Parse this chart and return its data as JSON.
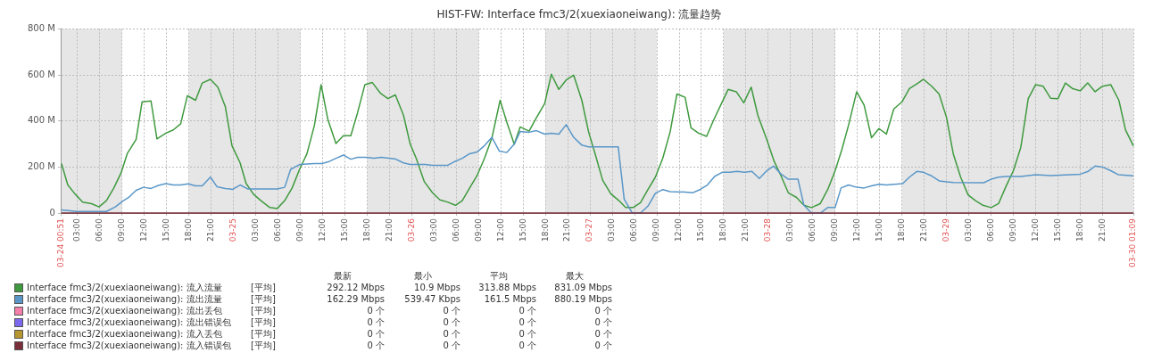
{
  "chart_data": {
    "type": "line",
    "title": "HIST-FW: Interface fmc3/2(xuexiaoneiwang): 流量趋势",
    "xlim": [
      "--03-24T00:51",
      "--03-30T01:09"
    ],
    "xticks": [
      {
        "value": "--03-24T00:51",
        "label": "03-24 00:51"
      },
      {
        "value": "--03-24T03:00",
        "label": "03:00"
      },
      {
        "value": "--03-24T06:00",
        "label": "06:00"
      },
      {
        "value": "--03-24T09:00",
        "label": "09:00"
      },
      {
        "value": "--03-24T12:00",
        "label": "12:00"
      },
      {
        "value": "--03-24T15:00",
        "label": "15:00"
      },
      {
        "value": "--03-24T18:00",
        "label": "18:00"
      },
      {
        "value": "--03-24T21:00",
        "label": "21:00"
      },
      {
        "value": "--03-25",
        "label": "03-25"
      },
      {
        "value": "--03-25T03:00",
        "label": "03:00"
      },
      {
        "value": "--03-25T06:00",
        "label": "06:00"
      },
      {
        "value": "--03-25T09:00",
        "label": "09:00"
      },
      {
        "value": "--03-25T12:00",
        "label": "12:00"
      },
      {
        "value": "--03-25T15:00",
        "label": "15:00"
      },
      {
        "value": "--03-25T18:00",
        "label": "18:00"
      },
      {
        "value": "--03-25T21:00",
        "label": "21:00"
      },
      {
        "value": "--03-26",
        "label": "03-26"
      },
      {
        "value": "--03-26T03:00",
        "label": "03:00"
      },
      {
        "value": "--03-26T06:00",
        "label": "06:00"
      },
      {
        "value": "--03-26T09:00",
        "label": "09:00"
      },
      {
        "value": "--03-26T12:00",
        "label": "12:00"
      },
      {
        "value": "--03-26T15:00",
        "label": "15:00"
      },
      {
        "value": "--03-26T18:00",
        "label": "18:00"
      },
      {
        "value": "--03-26T21:00",
        "label": "21:00"
      },
      {
        "value": "--03-27",
        "label": "03-27"
      },
      {
        "value": "--03-27T03:00",
        "label": "03:00"
      },
      {
        "value": "--03-27T06:00",
        "label": "06:00"
      },
      {
        "value": "--03-27T09:00",
        "label": "09:00"
      },
      {
        "value": "--03-27T12:00",
        "label": "12:00"
      },
      {
        "value": "--03-27T15:00",
        "label": "15:00"
      },
      {
        "value": "--03-27T18:00",
        "label": "18:00"
      },
      {
        "value": "--03-27T21:00",
        "label": "21:00"
      },
      {
        "value": "--03-28",
        "label": "03-28"
      },
      {
        "value": "--03-28T03:00",
        "label": "03:00"
      },
      {
        "value": "--03-28T06:00",
        "label": "06:00"
      },
      {
        "value": "--03-28T09:00",
        "label": "09:00"
      },
      {
        "value": "--03-28T12:00",
        "label": "12:00"
      },
      {
        "value": "--03-28T15:00",
        "label": "15:00"
      },
      {
        "value": "--03-28T18:00",
        "label": "18:00"
      },
      {
        "value": "--03-28T21:00",
        "label": "21:00"
      },
      {
        "value": "--03-29",
        "label": "03-29"
      },
      {
        "value": "--03-29T03:00",
        "label": "03:00"
      },
      {
        "value": "--03-29T06:00",
        "label": "06:00"
      },
      {
        "value": "--03-29T09:00",
        "label": "09:00"
      },
      {
        "value": "--03-29T12:00",
        "label": "12:00"
      },
      {
        "value": "--03-29T15:00",
        "label": "15:00"
      },
      {
        "value": "--03-29T18:00",
        "label": "18:00"
      },
      {
        "value": "--03-29T21:00",
        "label": "21:00"
      },
      {
        "value": "--03-30T01:09",
        "label": "03-30 01:09"
      }
    ],
    "ylim": [
      0,
      800
    ],
    "yticks": [
      0,
      {
        "value": 200,
        "label": "200 M"
      },
      {
        "value": 400,
        "label": "400 M"
      },
      {
        "value": 600,
        "label": "600 M"
      },
      {
        "value": 800,
        "label": "800 M"
      }
    ],
    "grid": true,
    "legend": "bottom",
    "bands": [
      {
        "axis": "x",
        "from": "--03-24T00:51",
        "to": "--03-24T09:00",
        "color": "#e6e6e6"
      },
      {
        "axis": "x",
        "from": "--03-24T18:00",
        "to": "--03-25T09:00",
        "color": "#e6e6e6"
      },
      {
        "axis": "x",
        "from": "--03-25T18:00",
        "to": "--03-26T09:00",
        "color": "#e6e6e6"
      },
      {
        "axis": "x",
        "from": "--03-26T18:00",
        "to": "--03-27T09:00",
        "color": "#e6e6e6"
      },
      {
        "axis": "x",
        "from": "--03-27T18:00",
        "to": "--03-28T09:00",
        "color": "#e6e6e6"
      },
      {
        "axis": "x",
        "from": "--03-28T18:00",
        "to": "--03-30T01:09",
        "color": "#e6e6e6"
      }
    ],
    "series": [
      {
        "name": "Interface fmc3/2(xuexiaoneiwang): 流入流量",
        "color": "#3f9a3f",
        "x": [
          "--03-24T00:51",
          "--03-24T01:42",
          "--03-24T02:42",
          "--03-24T03:42",
          "--03-24T04:54",
          "--03-24T05:54",
          "--03-24T06:54",
          "--03-24T07:54",
          "--03-24T08:54",
          "--03-24T09:42",
          "--03-24T10:54",
          "--03-24T11:42",
          "--03-24T12:54",
          "--03-24T13:42",
          "--03-24T14:54",
          "--03-24T15:54",
          "--03-24T16:54",
          "--03-24T17:48",
          "--03-24T18:54",
          "--03-24T19:48",
          "--03-24T20:54",
          "--03-24T21:54",
          "--03-24T22:54",
          "--03-24T23:48",
          "--03-25T00:54",
          "--03-25T01:42",
          "--03-25T02:42",
          "--03-25T03:42",
          "--03-25T04:54",
          "--03-25T05:54",
          "--03-25T06:54",
          "--03-25T07:54",
          "--03-25T08:54",
          "--03-25T09:54",
          "--03-25T10:54",
          "--03-25T11:48",
          "--03-25T12:42",
          "--03-25T13:48",
          "--03-25T14:48",
          "--03-25T15:48",
          "--03-25T16:42",
          "--03-25T17:42",
          "--03-25T18:42",
          "--03-25T19:48",
          "--03-25T20:48",
          "--03-25T21:48",
          "--03-25T22:54",
          "--03-25T23:48",
          "--03-26T00:36",
          "--03-26T01:42",
          "--03-26T02:48",
          "--03-26T03:48",
          "--03-26T04:48",
          "--03-26T05:54",
          "--03-26T06:48",
          "--03-26T07:48",
          "--03-26T08:48",
          "--03-26T09:48",
          "--03-26T10:48",
          "--03-26T11:54",
          "--03-26T12:48",
          "--03-26T13:48",
          "--03-26T14:36",
          "--03-26T15:48",
          "--03-26T16:48",
          "--03-26T17:54",
          "--03-26T18:48",
          "--03-26T19:48",
          "--03-26T20:48",
          "--03-26T21:48",
          "--03-26T22:54",
          "--03-26T23:48",
          "--03-27T00:48",
          "--03-27T01:42",
          "--03-27T02:48",
          "--03-27T03:54",
          "--03-27T04:48",
          "--03-27T05:48",
          "--03-27T06:48",
          "--03-27T07:48",
          "--03-27T08:48",
          "--03-27T09:48",
          "--03-27T10:48",
          "--03-27T11:42",
          "--03-27T12:48",
          "--03-27T13:36",
          "--03-27T14:36",
          "--03-27T15:42",
          "--03-27T16:36",
          "--03-27T17:36",
          "--03-27T18:36",
          "--03-27T19:42",
          "--03-27T20:42",
          "--03-27T21:42",
          "--03-27T22:36",
          "--03-27T23:48",
          "--03-28T00:48",
          "--03-28T01:42",
          "--03-28T02:42",
          "--03-28T03:48",
          "--03-28T04:48",
          "--03-28T05:48",
          "--03-28T07:00",
          "--03-28T08:00",
          "--03-28T09:00",
          "--03-28T09:54",
          "--03-28T10:48",
          "--03-28T11:54",
          "--03-28T12:54",
          "--03-28T13:54",
          "--03-28T14:54",
          "--03-28T15:54",
          "--03-28T16:54",
          "--03-28T18:00",
          "--03-28T19:00",
          "--03-28T20:00",
          "--03-28T20:54",
          "--03-28T22:00",
          "--03-28T23:00",
          "--03-29T00:00",
          "--03-29T00:54",
          "--03-29T01:54",
          "--03-29T02:54",
          "--03-29T03:54",
          "--03-29T04:54",
          "--03-29T06:00",
          "--03-29T07:00",
          "--03-29T08:00",
          "--03-29T09:00",
          "--03-29T10:00",
          "--03-29T11:00",
          "--03-29T12:00",
          "--03-29T13:00",
          "--03-29T14:00",
          "--03-29T15:00",
          "--03-29T16:00",
          "--03-29T17:00",
          "--03-29T18:00",
          "--03-29T19:00",
          "--03-29T20:00",
          "--03-29T21:00",
          "--03-29T22:06",
          "--03-29T23:12",
          "--03-30T00:06",
          "--03-30T01:09"
        ],
        "values": [
          215,
          122,
          82,
          48,
          41,
          27,
          54,
          109,
          177,
          258,
          320,
          483,
          487,
          322,
          347,
          361,
          388,
          510,
          490,
          565,
          581,
          547,
          463,
          293,
          218,
          129,
          82,
          54,
          24,
          20,
          54,
          109,
          190,
          258,
          381,
          558,
          408,
          302,
          336,
          336,
          435,
          558,
          567,
          520,
          497,
          513,
          424,
          299,
          238,
          136,
          88,
          57,
          48,
          34,
          54,
          109,
          163,
          238,
          327,
          490,
          395,
          299,
          374,
          356,
          415,
          476,
          603,
          537,
          578,
          599,
          490,
          354,
          245,
          143,
          84,
          54,
          24,
          24,
          45,
          102,
          156,
          238,
          354,
          517,
          503,
          370,
          347,
          333,
          401,
          469,
          537,
          527,
          479,
          547,
          424,
          320,
          224,
          163,
          88,
          68,
          34,
          24,
          41,
          102,
          184,
          275,
          381,
          527,
          469,
          327,
          367,
          343,
          452,
          483,
          541,
          561,
          581,
          551,
          517,
          415,
          258,
          156,
          79,
          54,
          34,
          24,
          41,
          116,
          184,
          286,
          497,
          558,
          551,
          499,
          497,
          565,
          540,
          531,
          565,
          527,
          551,
          558,
          490,
          361,
          292
        ]
      },
      {
        "name": "Interface fmc3/2(xuexiaoneiwang): 流出流量",
        "color": "#5a97c8",
        "x": [
          "--03-24T00:51",
          "--03-24T02:54",
          "--03-24T06:54",
          "--03-24T08:06",
          "--03-24T09:06",
          "--03-24T09:54",
          "--03-24T10:54",
          "--03-24T11:54",
          "--03-24T12:54",
          "--03-24T13:54",
          "--03-24T14:54",
          "--03-24T15:54",
          "--03-24T16:54",
          "--03-24T17:54",
          "--03-24T18:54",
          "--03-24T19:48",
          "--03-24T20:54",
          "--03-24T21:48",
          "--03-24T22:54",
          "--03-24T23:54",
          "--03-25T00:54",
          "--03-25T01:54",
          "--03-25T05:54",
          "--03-25T06:54",
          "--03-25T07:42",
          "--03-25T08:54",
          "--03-25T10:54",
          "--03-25T11:54",
          "--03-25T12:54",
          "--03-25T13:48",
          "--03-25T14:48",
          "--03-25T15:48",
          "--03-25T16:42",
          "--03-25T17:54",
          "--03-25T18:54",
          "--03-25T19:54",
          "--03-25T20:54",
          "--03-25T21:48",
          "--03-25T22:54",
          "--03-25T23:48",
          "--03-26T01:48",
          "--03-26T02:48",
          "--03-26T04:48",
          "--03-26T05:48",
          "--03-26T06:48",
          "--03-26T07:48",
          "--03-26T08:48",
          "--03-26T09:48",
          "--03-26T10:48",
          "--03-26T11:48",
          "--03-26T12:48",
          "--03-26T13:48",
          "--03-26T14:36",
          "--03-26T15:48",
          "--03-26T16:48",
          "--03-26T17:54",
          "--03-26T18:48",
          "--03-26T19:48",
          "--03-26T20:48",
          "--03-26T21:48",
          "--03-26T22:54",
          "--03-26T23:48",
          "--03-27T03:48",
          "--03-27T04:36",
          "--03-27T05:42",
          "--03-27T06:48",
          "--03-27T07:48",
          "--03-27T08:48",
          "--03-27T09:48",
          "--03-27T10:48",
          "--03-27T12:48",
          "--03-27T13:48",
          "--03-27T14:48",
          "--03-27T15:48",
          "--03-27T16:48",
          "--03-27T17:48",
          "--03-27T18:48",
          "--03-27T19:48",
          "--03-27T20:48",
          "--03-27T21:48",
          "--03-27T22:48",
          "--03-27T23:48",
          "--03-28T00:42",
          "--03-28T01:42",
          "--03-28T02:42",
          "--03-28T04:00",
          "--03-28T04:48",
          "--03-28T05:48",
          "--03-28T07:00",
          "--03-28T08:00",
          "--03-28T09:00",
          "--03-28T09:48",
          "--03-28T10:48",
          "--03-28T11:54",
          "--03-28T12:54",
          "--03-28T13:54",
          "--03-28T14:54",
          "--03-28T15:54",
          "--03-28T18:06",
          "--03-28T19:00",
          "--03-28T20:00",
          "--03-28T20:54",
          "--03-28T21:54",
          "--03-28T23:00",
          "--03-29T00:54",
          "--03-29T05:00",
          "--03-29T06:00",
          "--03-29T07:00",
          "--03-29T08:00",
          "--03-29T10:00",
          "--03-29T12:00",
          "--03-29T14:00",
          "--03-29T16:00",
          "--03-29T18:00",
          "--03-29T19:00",
          "--03-29T20:00",
          "--03-29T21:00",
          "--03-29T22:06",
          "--03-29T23:06",
          "--03-30T01:09"
        ],
        "values": [
          14,
          7,
          7,
          27,
          52,
          68,
          99,
          112,
          107,
          120,
          128,
          122,
          122,
          127,
          118,
          118,
          156,
          114,
          107,
          103,
          122,
          105,
          105,
          112,
          190,
          211,
          215,
          215,
          224,
          238,
          252,
          234,
          242,
          242,
          238,
          242,
          238,
          235,
          218,
          211,
          211,
          207,
          207,
          224,
          238,
          258,
          265,
          293,
          329,
          269,
          263,
          299,
          354,
          351,
          358,
          343,
          347,
          343,
          384,
          329,
          295,
          288,
          288,
          61,
          0,
          0,
          30,
          86,
          102,
          93,
          91,
          88,
          102,
          122,
          160,
          177,
          177,
          181,
          177,
          181,
          150,
          184,
          204,
          170,
          147,
          147,
          34,
          0,
          0,
          24,
          24,
          109,
          122,
          112,
          109,
          118,
          125,
          122,
          128,
          156,
          181,
          177,
          163,
          140,
          133,
          132,
          147,
          156,
          159,
          159,
          167,
          163,
          166,
          169,
          180,
          204,
          200,
          184,
          167,
          162
        ]
      },
      {
        "name": "Interface fmc3/2(xuexiaoneiwang): 流出丢包",
        "color": "#f47fa8"
      },
      {
        "name": "Interface fmc3/2(xuexiaoneiwang): 流出错误包",
        "color": "#7b68ee"
      },
      {
        "name": "Interface fmc3/2(xuexiaoneiwang): 流入丢包",
        "color": "#b8962e"
      },
      {
        "name": "Interface fmc3/2(xuexiaoneiwang): 流入错误包",
        "color": "#7a2e3a",
        "x": [
          "--03-24T00:51",
          "--03-30T01:09"
        ],
        "values": [
          0,
          0
        ]
      }
    ],
    "annotations": [
      "最新",
      "最小",
      "平均",
      "最大",
      "[平均]",
      "292.12 Mbps",
      "10.9 Mbps",
      "313.88 Mbps",
      "831.09 Mbps",
      "[平均]",
      "162.29 Mbps",
      "539.47 Kbps",
      "161.5 Mbps",
      "880.19 Mbps",
      "[平均]",
      "0 个",
      "0 个",
      "0 个",
      "0 个",
      "[平均]",
      "0 个",
      "0 个",
      "0 个",
      "0 个",
      "[平均]",
      "0 个",
      "0 个",
      "0 个",
      "0 个",
      "[平均]",
      "0 个",
      "0 个",
      "0 个",
      "0 个"
    ]
  }
}
